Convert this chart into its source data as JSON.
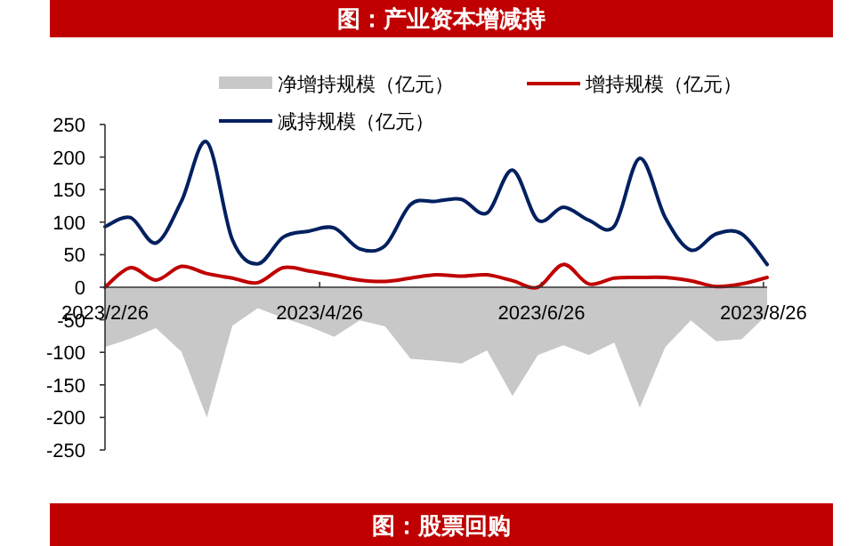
{
  "chart_data": {
    "type": "line",
    "title": "图：产业资本增减持",
    "x": [
      "2023-02-26",
      "2023-03-05",
      "2023-03-12",
      "2023-03-19",
      "2023-03-26",
      "2023-04-02",
      "2023-04-09",
      "2023-04-16",
      "2023-04-23",
      "2023-04-30",
      "2023-05-07",
      "2023-05-14",
      "2023-05-21",
      "2023-05-28",
      "2023-06-04",
      "2023-06-11",
      "2023-06-18",
      "2023-06-25",
      "2023-07-02",
      "2023-07-09",
      "2023-07-16",
      "2023-07-23",
      "2023-07-30",
      "2023-08-06",
      "2023-08-13",
      "2023-08-20",
      "2023-08-27"
    ],
    "series": [
      {
        "name": "净增持规模（亿元）",
        "type": "area",
        "color": "#c8c8c8",
        "values": [
          -92,
          -79,
          -63,
          -99,
          -200,
          -59,
          -32,
          -47,
          -60,
          -76,
          -51,
          -60,
          -110,
          -113,
          -117,
          -97,
          -167,
          -104,
          -89,
          -104,
          -85,
          -185,
          -92,
          -51,
          -83,
          -80,
          -42
        ]
      },
      {
        "name": "增持规模（亿元）",
        "type": "line",
        "color": "#c00000",
        "values": [
          0,
          30,
          11,
          32,
          21,
          14,
          7,
          30,
          25,
          18,
          11,
          9,
          14,
          19,
          17,
          19,
          10,
          0,
          35,
          5,
          14,
          15,
          15,
          10,
          1,
          5,
          15
        ]
      },
      {
        "name": "减持规模（亿元）",
        "type": "line",
        "color": "#002060",
        "values": [
          93,
          107,
          68,
          132,
          223,
          73,
          36,
          77,
          86,
          91,
          59,
          64,
          127,
          132,
          135,
          114,
          180,
          103,
          123,
          103,
          94,
          198,
          107,
          57,
          82,
          82,
          35
        ]
      }
    ],
    "xlim": [
      "2023-02-26",
      "2023-08-27"
    ],
    "xticks": [
      {
        "value": "2023-02-26",
        "label": "2023/2/26"
      },
      {
        "value": "2023-04-26",
        "label": "2023/4/26"
      },
      {
        "value": "2023-06-26",
        "label": "2023/6/26"
      },
      {
        "value": "2023-08-26",
        "label": "2023/8/26"
      }
    ],
    "ylim": [
      -250,
      250
    ],
    "yticks": [
      -250,
      -200,
      -150,
      -100,
      -50,
      0,
      50,
      100,
      150,
      200,
      250
    ],
    "legend": "top",
    "grid": false,
    "annotations": [
      "图：股票回购"
    ]
  }
}
